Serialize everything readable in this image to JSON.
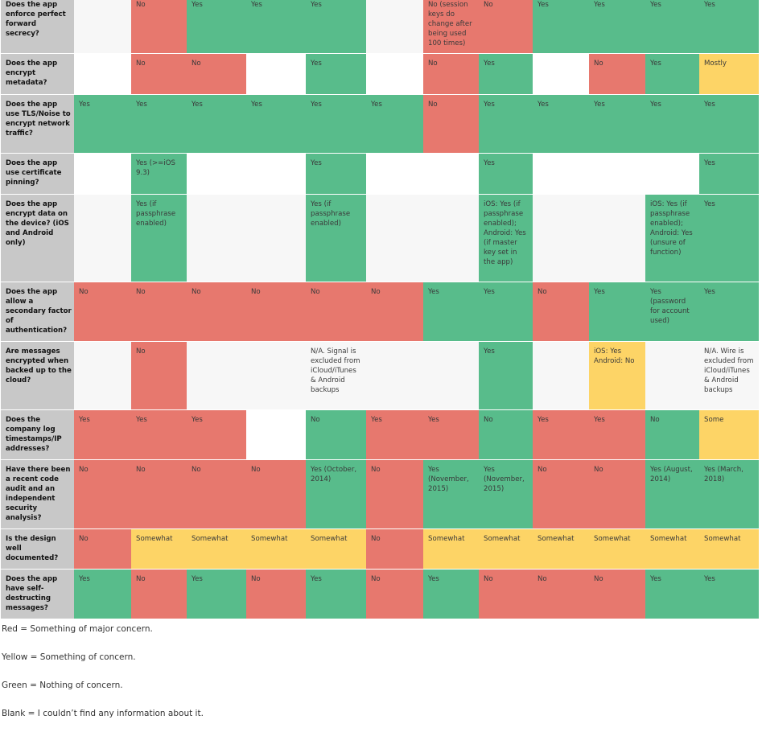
{
  "colors": {
    "red": "#e7786e",
    "green": "#58bc8b",
    "yellow": "#fdd466",
    "blank": "#f7f7f7",
    "label": "#c8c8c8"
  },
  "rows": [
    {
      "question": "Does the app enforce perfect forward secrecy?",
      "height": 66,
      "offset": -8,
      "cells": [
        [
          "",
          "blank"
        ],
        [
          "No",
          "red"
        ],
        [
          "Yes",
          "green"
        ],
        [
          "Yes",
          "green"
        ],
        [
          "Yes",
          "green"
        ],
        [
          "",
          "blank"
        ],
        [
          "No (session keys do change after being used 100 times)",
          "red"
        ],
        [
          "No",
          "red"
        ],
        [
          "Yes",
          "green"
        ],
        [
          "Yes",
          "green"
        ],
        [
          "Yes",
          "green"
        ],
        [
          "Yes",
          "green"
        ]
      ]
    },
    {
      "question": "Does the app encrypt metadata?",
      "height": 50,
      "offset": 6,
      "cells": [
        [
          "",
          "white"
        ],
        [
          "No",
          "red"
        ],
        [
          "No",
          "red"
        ],
        [
          "",
          "white"
        ],
        [
          "Yes",
          "green"
        ],
        [
          "",
          "white"
        ],
        [
          "No",
          "red"
        ],
        [
          "Yes",
          "green"
        ],
        [
          "",
          "white"
        ],
        [
          "No",
          "red"
        ],
        [
          "Yes",
          "green"
        ],
        [
          "Mostly",
          "yellow"
        ]
      ]
    },
    {
      "question": "Does the app use TLS/Noise to encrypt network traffic?",
      "height": 72,
      "offset": 6,
      "cells": [
        [
          "Yes",
          "green"
        ],
        [
          "Yes",
          "green"
        ],
        [
          "Yes",
          "green"
        ],
        [
          "Yes",
          "green"
        ],
        [
          "Yes",
          "green"
        ],
        [
          "Yes",
          "green"
        ],
        [
          "No",
          "red"
        ],
        [
          "Yes",
          "green"
        ],
        [
          "Yes",
          "green"
        ],
        [
          "Yes",
          "green"
        ],
        [
          "Yes",
          "green"
        ],
        [
          "Yes",
          "green"
        ]
      ]
    },
    {
      "question": "Does the app use certificate pinning?",
      "height": 50,
      "offset": 6,
      "cells": [
        [
          "",
          "white"
        ],
        [
          "Yes (>=iOS 9.3)",
          "green"
        ],
        [
          "",
          "white"
        ],
        [
          "",
          "white"
        ],
        [
          "Yes",
          "green"
        ],
        [
          "",
          "white"
        ],
        [
          "",
          "white"
        ],
        [
          "Yes",
          "green"
        ],
        [
          "",
          "white"
        ],
        [
          "",
          "white"
        ],
        [
          "",
          "white"
        ],
        [
          "Yes",
          "green"
        ]
      ]
    },
    {
      "question": "Does the app encrypt data on the device? (iOS and Android only)",
      "height": 108,
      "offset": 6,
      "cells": [
        [
          "",
          "blank"
        ],
        [
          "Yes (if passphrase enabled)",
          "green"
        ],
        [
          "",
          "blank"
        ],
        [
          "",
          "blank"
        ],
        [
          "Yes (if passphrase enabled)",
          "green"
        ],
        [
          "",
          "blank"
        ],
        [
          "",
          "blank"
        ],
        [
          "iOS: Yes (if passphrase enabled); Android: Yes (if master key set in the app)",
          "green"
        ],
        [
          "",
          "blank"
        ],
        [
          "",
          "blank"
        ],
        [
          "iOS: Yes (if passphrase enabled); Android: Yes (unsure of function)",
          "green"
        ],
        [
          "Yes",
          "green"
        ]
      ]
    },
    {
      "question": "Does the app allow a secondary factor of authentication?",
      "height": 73,
      "offset": 6,
      "cells": [
        [
          "No",
          "red"
        ],
        [
          "No",
          "red"
        ],
        [
          "No",
          "red"
        ],
        [
          "No",
          "red"
        ],
        [
          "No",
          "red"
        ],
        [
          "No",
          "red"
        ],
        [
          "Yes",
          "green"
        ],
        [
          "Yes",
          "green"
        ],
        [
          "No",
          "red"
        ],
        [
          "Yes",
          "green"
        ],
        [
          "Yes (password for account used)",
          "green"
        ],
        [
          "Yes",
          "green"
        ]
      ]
    },
    {
      "question": "Are messages encrypted when backed up to the cloud?",
      "height": 84,
      "offset": 6,
      "cells": [
        [
          "",
          "blank"
        ],
        [
          "No",
          "red"
        ],
        [
          "",
          "blank"
        ],
        [
          "",
          "blank"
        ],
        [
          "N/A. Signal is excluded from iCloud/iTunes & Android backups",
          "blank"
        ],
        [
          "",
          "blank"
        ],
        [
          "",
          "blank"
        ],
        [
          "Yes",
          "green"
        ],
        [
          "",
          "blank"
        ],
        [
          "iOS: Yes Android: No",
          "yellow"
        ],
        [
          "",
          "blank"
        ],
        [
          "N/A. Wire is excluded from iCloud/iTunes & Android backups",
          "blank"
        ]
      ]
    },
    {
      "question": "Does the company log timestamps/IP addresses?",
      "height": 61,
      "offset": 6,
      "cells": [
        [
          "Yes",
          "red"
        ],
        [
          "Yes",
          "red"
        ],
        [
          "Yes",
          "red"
        ],
        [
          "",
          "white"
        ],
        [
          "No",
          "green"
        ],
        [
          "Yes",
          "red"
        ],
        [
          "Yes",
          "red"
        ],
        [
          "No",
          "green"
        ],
        [
          "Yes",
          "red"
        ],
        [
          "Yes",
          "red"
        ],
        [
          "No",
          "green"
        ],
        [
          "Some",
          "yellow"
        ]
      ]
    },
    {
      "question": "Have there been a recent code audit and an independent security analysis?",
      "height": 85,
      "offset": 6,
      "cells": [
        [
          "No",
          "red"
        ],
        [
          "No",
          "red"
        ],
        [
          "No",
          "red"
        ],
        [
          "No",
          "red"
        ],
        [
          "Yes (October, 2014)",
          "green"
        ],
        [
          "No",
          "red"
        ],
        [
          "Yes (November, 2015)",
          "green"
        ],
        [
          "Yes (November, 2015)",
          "green"
        ],
        [
          "No",
          "red"
        ],
        [
          "No",
          "red"
        ],
        [
          "Yes (August, 2014)",
          "green"
        ],
        [
          "Yes (March, 2018)",
          "green"
        ]
      ]
    },
    {
      "question": "Is the design well documented?",
      "height": 49,
      "offset": 6,
      "cells": [
        [
          "No",
          "red"
        ],
        [
          "Somewhat",
          "yellow"
        ],
        [
          "Somewhat",
          "yellow"
        ],
        [
          "Somewhat",
          "yellow"
        ],
        [
          "Somewhat",
          "yellow"
        ],
        [
          "No",
          "red"
        ],
        [
          "Somewhat",
          "yellow"
        ],
        [
          "Somewhat",
          "yellow"
        ],
        [
          "Somewhat",
          "yellow"
        ],
        [
          "Somewhat",
          "yellow"
        ],
        [
          "Somewhat",
          "yellow"
        ],
        [
          "Somewhat",
          "yellow"
        ]
      ]
    },
    {
      "question": "Does the app have self-destructing messages?",
      "height": 61,
      "offset": 6,
      "cells": [
        [
          "Yes",
          "green"
        ],
        [
          "No",
          "red"
        ],
        [
          "Yes",
          "green"
        ],
        [
          "No",
          "red"
        ],
        [
          "Yes",
          "green"
        ],
        [
          "No",
          "red"
        ],
        [
          "Yes",
          "green"
        ],
        [
          "No",
          "red"
        ],
        [
          "No",
          "red"
        ],
        [
          "No",
          "red"
        ],
        [
          "Yes",
          "green"
        ],
        [
          "Yes",
          "green"
        ]
      ]
    }
  ],
  "legend": [
    "Red = Something of major concern.",
    "Yellow = Something of concern.",
    "Green = Nothing of concern.",
    "Blank = I couldn’t find any information about it."
  ]
}
